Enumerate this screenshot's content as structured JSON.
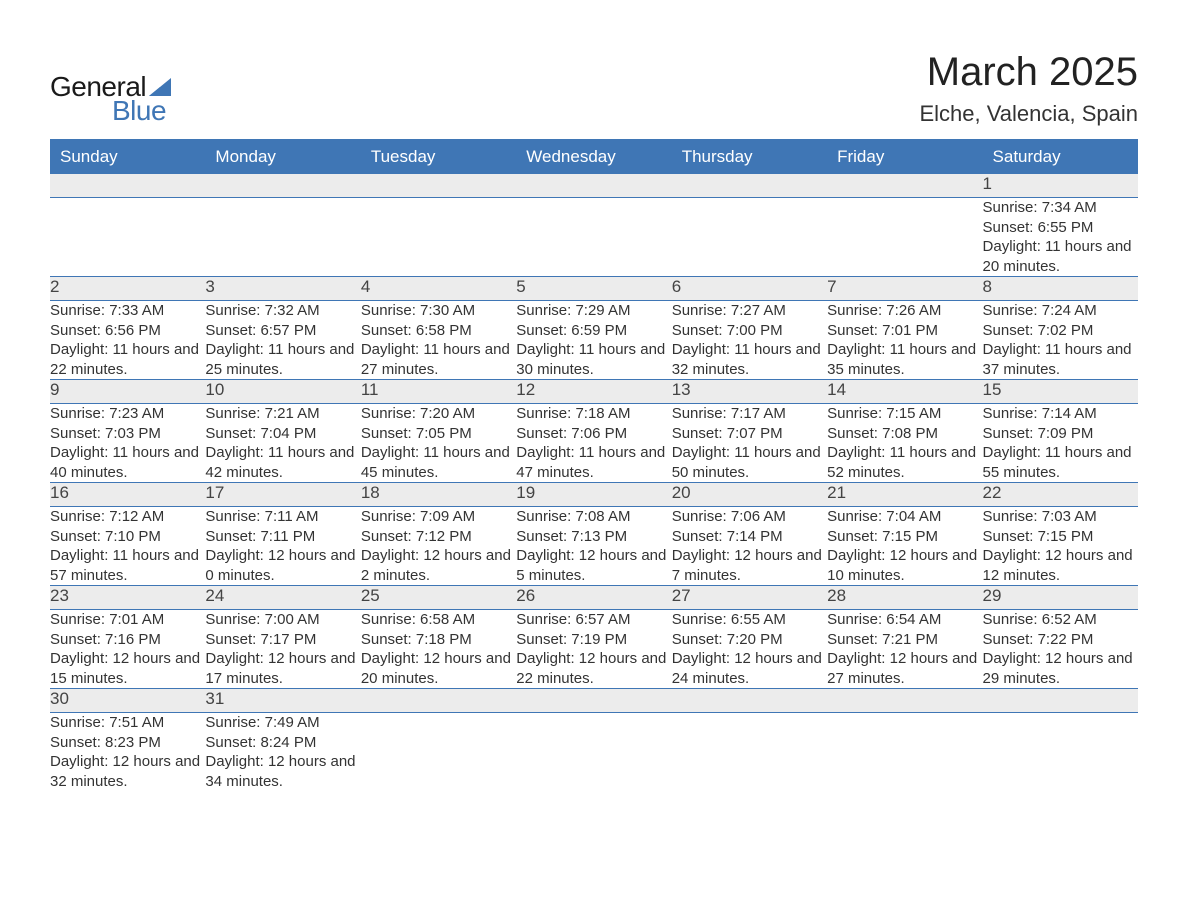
{
  "brand": {
    "word1": "General",
    "word2": "Blue",
    "text_color": "#1a1a1a",
    "accent_color": "#3f76b5"
  },
  "title": "March 2025",
  "location": "Elche, Valencia, Spain",
  "colors": {
    "header_bg": "#3f76b5",
    "header_text": "#ffffff",
    "daynum_bg": "#ececec",
    "border": "#3f76b5",
    "body_text": "#333333",
    "page_bg": "#ffffff"
  },
  "font": {
    "family": "Arial",
    "day_size_pt": 11,
    "title_size_pt": 30,
    "loc_size_pt": 16
  },
  "weekdays": [
    "Sunday",
    "Monday",
    "Tuesday",
    "Wednesday",
    "Thursday",
    "Friday",
    "Saturday"
  ],
  "weeks": [
    [
      null,
      null,
      null,
      null,
      null,
      null,
      {
        "day": 1,
        "sunrise": "7:34 AM",
        "sunset": "6:55 PM",
        "daylight": "11 hours and 20 minutes."
      }
    ],
    [
      {
        "day": 2,
        "sunrise": "7:33 AM",
        "sunset": "6:56 PM",
        "daylight": "11 hours and 22 minutes."
      },
      {
        "day": 3,
        "sunrise": "7:32 AM",
        "sunset": "6:57 PM",
        "daylight": "11 hours and 25 minutes."
      },
      {
        "day": 4,
        "sunrise": "7:30 AM",
        "sunset": "6:58 PM",
        "daylight": "11 hours and 27 minutes."
      },
      {
        "day": 5,
        "sunrise": "7:29 AM",
        "sunset": "6:59 PM",
        "daylight": "11 hours and 30 minutes."
      },
      {
        "day": 6,
        "sunrise": "7:27 AM",
        "sunset": "7:00 PM",
        "daylight": "11 hours and 32 minutes."
      },
      {
        "day": 7,
        "sunrise": "7:26 AM",
        "sunset": "7:01 PM",
        "daylight": "11 hours and 35 minutes."
      },
      {
        "day": 8,
        "sunrise": "7:24 AM",
        "sunset": "7:02 PM",
        "daylight": "11 hours and 37 minutes."
      }
    ],
    [
      {
        "day": 9,
        "sunrise": "7:23 AM",
        "sunset": "7:03 PM",
        "daylight": "11 hours and 40 minutes."
      },
      {
        "day": 10,
        "sunrise": "7:21 AM",
        "sunset": "7:04 PM",
        "daylight": "11 hours and 42 minutes."
      },
      {
        "day": 11,
        "sunrise": "7:20 AM",
        "sunset": "7:05 PM",
        "daylight": "11 hours and 45 minutes."
      },
      {
        "day": 12,
        "sunrise": "7:18 AM",
        "sunset": "7:06 PM",
        "daylight": "11 hours and 47 minutes."
      },
      {
        "day": 13,
        "sunrise": "7:17 AM",
        "sunset": "7:07 PM",
        "daylight": "11 hours and 50 minutes."
      },
      {
        "day": 14,
        "sunrise": "7:15 AM",
        "sunset": "7:08 PM",
        "daylight": "11 hours and 52 minutes."
      },
      {
        "day": 15,
        "sunrise": "7:14 AM",
        "sunset": "7:09 PM",
        "daylight": "11 hours and 55 minutes."
      }
    ],
    [
      {
        "day": 16,
        "sunrise": "7:12 AM",
        "sunset": "7:10 PM",
        "daylight": "11 hours and 57 minutes."
      },
      {
        "day": 17,
        "sunrise": "7:11 AM",
        "sunset": "7:11 PM",
        "daylight": "12 hours and 0 minutes."
      },
      {
        "day": 18,
        "sunrise": "7:09 AM",
        "sunset": "7:12 PM",
        "daylight": "12 hours and 2 minutes."
      },
      {
        "day": 19,
        "sunrise": "7:08 AM",
        "sunset": "7:13 PM",
        "daylight": "12 hours and 5 minutes."
      },
      {
        "day": 20,
        "sunrise": "7:06 AM",
        "sunset": "7:14 PM",
        "daylight": "12 hours and 7 minutes."
      },
      {
        "day": 21,
        "sunrise": "7:04 AM",
        "sunset": "7:15 PM",
        "daylight": "12 hours and 10 minutes."
      },
      {
        "day": 22,
        "sunrise": "7:03 AM",
        "sunset": "7:15 PM",
        "daylight": "12 hours and 12 minutes."
      }
    ],
    [
      {
        "day": 23,
        "sunrise": "7:01 AM",
        "sunset": "7:16 PM",
        "daylight": "12 hours and 15 minutes."
      },
      {
        "day": 24,
        "sunrise": "7:00 AM",
        "sunset": "7:17 PM",
        "daylight": "12 hours and 17 minutes."
      },
      {
        "day": 25,
        "sunrise": "6:58 AM",
        "sunset": "7:18 PM",
        "daylight": "12 hours and 20 minutes."
      },
      {
        "day": 26,
        "sunrise": "6:57 AM",
        "sunset": "7:19 PM",
        "daylight": "12 hours and 22 minutes."
      },
      {
        "day": 27,
        "sunrise": "6:55 AM",
        "sunset": "7:20 PM",
        "daylight": "12 hours and 24 minutes."
      },
      {
        "day": 28,
        "sunrise": "6:54 AM",
        "sunset": "7:21 PM",
        "daylight": "12 hours and 27 minutes."
      },
      {
        "day": 29,
        "sunrise": "6:52 AM",
        "sunset": "7:22 PM",
        "daylight": "12 hours and 29 minutes."
      }
    ],
    [
      {
        "day": 30,
        "sunrise": "7:51 AM",
        "sunset": "8:23 PM",
        "daylight": "12 hours and 32 minutes."
      },
      {
        "day": 31,
        "sunrise": "7:49 AM",
        "sunset": "8:24 PM",
        "daylight": "12 hours and 34 minutes."
      },
      null,
      null,
      null,
      null,
      null
    ]
  ],
  "labels": {
    "sunrise_prefix": "Sunrise: ",
    "sunset_prefix": "Sunset: ",
    "daylight_prefix": "Daylight: "
  }
}
